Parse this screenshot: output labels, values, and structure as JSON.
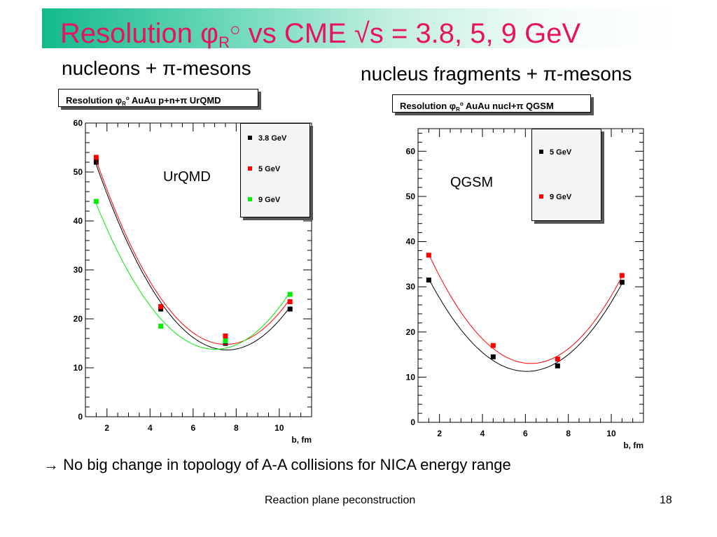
{
  "slide": {
    "title_main": "Resolution φ",
    "title_sub": "R",
    "title_degree": "○",
    "title_rest": " vs CME √s = 3.8, 5, 9 GeV",
    "subtitle_left": "nucleons + π-mesons",
    "subtitle_right": "nucleus fragments + π-mesons",
    "conclusion": "→ No big change in topology of A-A collisions for NICA energy range",
    "footer": "Reaction plane peconstruction",
    "page_number": "18",
    "colors": {
      "title": "#e8125f",
      "title_bar": "#13b98c"
    }
  },
  "chart_data": [
    {
      "type": "scatter",
      "hist_title_prefix": "Resolution ",
      "hist_title_phi": "φ",
      "hist_title_sup": "o",
      "hist_title_sub": "R",
      "hist_title_rest": "  AuAu p+n+π  UrQMD",
      "model_label": "UrQMD",
      "xlabel": "b, fm",
      "ylabel": "",
      "xlim": [
        1,
        11.5
      ],
      "ylim": [
        0,
        60
      ],
      "xticks": [
        2,
        4,
        6,
        8,
        10
      ],
      "yticks": [
        0,
        10,
        20,
        30,
        40,
        50,
        60
      ],
      "legend_position": "top-right",
      "fit_curves": true,
      "series": [
        {
          "name": "3.8 GeV",
          "color": "#000000",
          "x": [
            1.5,
            4.5,
            7.5,
            10.5
          ],
          "y": [
            52,
            22,
            15,
            22
          ]
        },
        {
          "name": "5 GeV",
          "color": "#ff0000",
          "x": [
            1.5,
            4.5,
            7.5,
            10.5
          ],
          "y": [
            53,
            22.5,
            16.5,
            23.5
          ]
        },
        {
          "name": "9 GeV",
          "color": "#00ee00",
          "x": [
            1.5,
            4.5,
            7.5,
            10.5
          ],
          "y": [
            44,
            18.5,
            15.5,
            25
          ]
        }
      ]
    },
    {
      "type": "scatter",
      "hist_title_prefix": "Resolution ",
      "hist_title_phi": "φ",
      "hist_title_sup": "o",
      "hist_title_sub": "R",
      "hist_title_rest": "  AuAu nucl+π  QGSM",
      "model_label": "QGSM",
      "xlabel": "b, fm",
      "ylabel": "",
      "xlim": [
        1,
        11.5
      ],
      "ylim": [
        0,
        65
      ],
      "xticks": [
        2,
        4,
        6,
        8,
        10
      ],
      "yticks": [
        0,
        10,
        20,
        30,
        40,
        50,
        60
      ],
      "legend_position": "top-right",
      "fit_curves": true,
      "series": [
        {
          "name": "5 GeV",
          "color": "#000000",
          "x": [
            1.5,
            4.5,
            7.5,
            10.5
          ],
          "y": [
            31.5,
            14.5,
            12.5,
            31
          ]
        },
        {
          "name": "9 GeV",
          "color": "#ff0000",
          "x": [
            1.5,
            4.5,
            7.5,
            10.5
          ],
          "y": [
            37,
            17,
            14,
            32.5
          ]
        }
      ]
    }
  ]
}
